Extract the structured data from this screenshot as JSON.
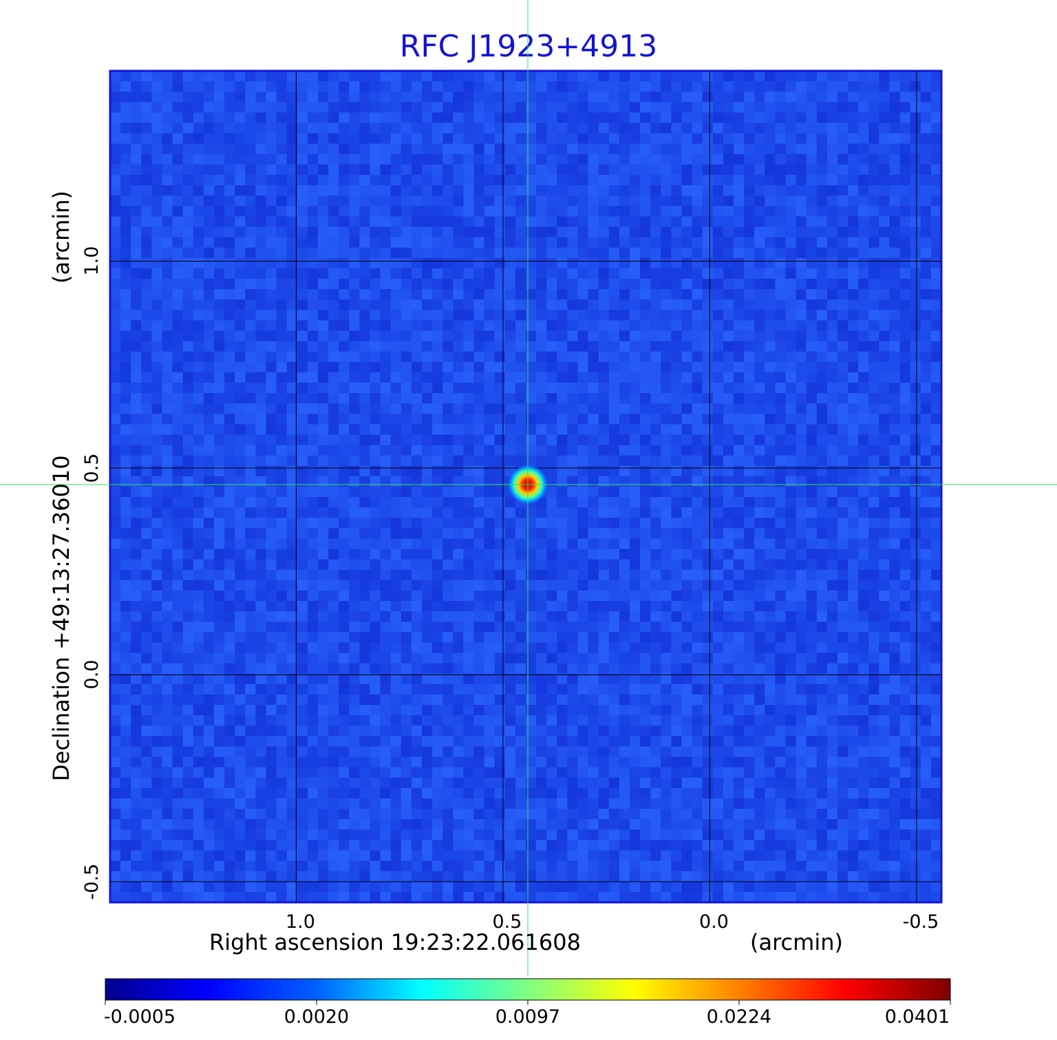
{
  "chart_data": {
    "type": "heatmap",
    "title": "RFC J1923+4913",
    "xlabel": "Right ascension  19:23:22.061608",
    "xlabel_unit": "(arcmin)",
    "ylabel": "Declination  +49:13:27.36010",
    "ylabel_unit": "(arcmin)",
    "x_ticks": [
      "1.0",
      "0.5",
      "0.0",
      "-0.5"
    ],
    "x_tick_values": [
      1.0,
      0.5,
      0.0,
      -0.5
    ],
    "y_ticks": [
      "1.0",
      "0.5",
      "0.0",
      "-0.5"
    ],
    "y_tick_values": [
      1.0,
      0.5,
      0.0,
      -0.5
    ],
    "xlim": [
      1.45,
      -0.56
    ],
    "ylim": [
      -0.55,
      1.46
    ],
    "grid": true,
    "crosshair": {
      "x": 0.44,
      "y": 0.46
    },
    "peak": {
      "x": 0.44,
      "y": 0.46,
      "value": 0.0401
    },
    "colormap": "jet",
    "colorbar_ticks": [
      "-0.0005",
      "0.0020",
      "0.0097",
      "0.0224",
      "0.0401"
    ],
    "colorbar_values": [
      -0.0005,
      0.002,
      0.0097,
      0.0224,
      0.0401
    ]
  },
  "colors": {
    "title": "#1414d2",
    "frame": "#1414d2",
    "background_field": "#1e46f0",
    "crosshair": "#32e650",
    "grid": "#000000"
  }
}
